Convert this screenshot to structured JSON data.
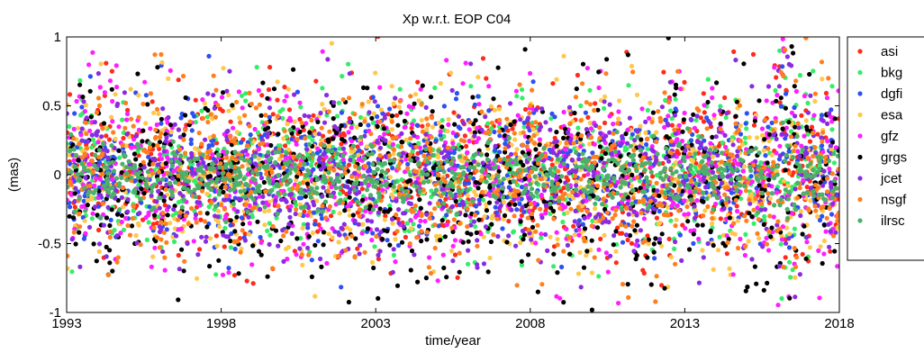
{
  "chart_data": {
    "type": "scatter",
    "title": "Xp w.r.t. EOP C04",
    "xlabel": "time/year",
    "ylabel": "(mas)",
    "xlim": [
      1993,
      2018
    ],
    "ylim": [
      -1,
      1
    ],
    "xticks": [
      1993,
      1998,
      2003,
      2008,
      2013,
      2018
    ],
    "yticks": [
      -1,
      -0.5,
      0,
      0.5,
      1
    ],
    "xtick_labels": [
      "1993",
      "1998",
      "2003",
      "2008",
      "2013",
      "2018"
    ],
    "ytick_labels": [
      "-1",
      "-0.5",
      "0",
      "0.5",
      "1"
    ],
    "grid": false,
    "legend_position": "right, outside plot area (clipped)",
    "series": [
      {
        "name": "asi",
        "color": "#ff2a1a",
        "spread": 0.3,
        "bias": 0.0,
        "start": 1993
      },
      {
        "name": "bkg",
        "color": "#33ee66",
        "spread": 0.28,
        "bias": 0.02,
        "start": 1993
      },
      {
        "name": "dgfi",
        "color": "#2e4ff2",
        "spread": 0.24,
        "bias": 0.0,
        "start": 1993
      },
      {
        "name": "esa",
        "color": "#ffc84a",
        "spread": 0.3,
        "bias": 0.0,
        "start": 1993
      },
      {
        "name": "gfz",
        "color": "#ff1eff",
        "spread": 0.32,
        "bias": 0.0,
        "start": 1993
      },
      {
        "name": "grgs",
        "color": "#000000",
        "spread": 0.35,
        "bias": -0.03,
        "start": 1993
      },
      {
        "name": "jcet",
        "color": "#8a2be2",
        "spread": 0.3,
        "bias": -0.02,
        "start": 1993
      },
      {
        "name": "nsgf",
        "color": "#ff7f1e",
        "spread": 0.3,
        "bias": 0.0,
        "start": 1993
      },
      {
        "name": "ilrsc",
        "color": "#4caf6a",
        "spread": 0.12,
        "bias": 0.0,
        "start": 1993
      }
    ],
    "legend_labels": [
      "asi",
      "bkg",
      "dgfi",
      "esa",
      "gfz",
      "grgs",
      "jcet",
      "nsgf",
      "ilrsc"
    ]
  }
}
